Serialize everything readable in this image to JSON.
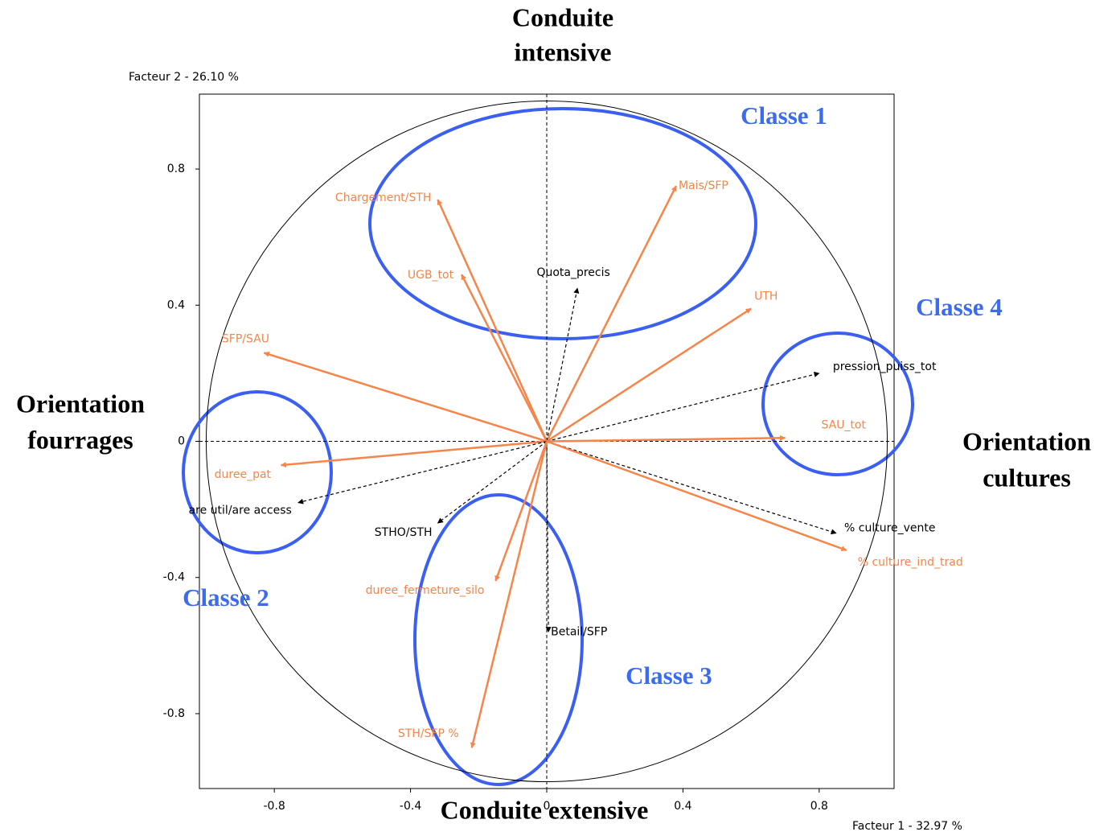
{
  "chart_data": {
    "type": "vector",
    "xlabel": "Facteur 1  -  32.97 %",
    "ylabel": "Facteur 2  -  26.10 %",
    "xlim": [
      -1.02,
      1.02
    ],
    "ylim": [
      -1.02,
      1.02
    ],
    "xticks": [
      -0.8,
      -0.4,
      0,
      0.4,
      0.8
    ],
    "yticks": [
      -0.8,
      -0.4,
      0,
      0.4,
      0.8
    ],
    "unit_circle": true,
    "labels": [
      "Chargement/STH",
      "Mais/SFP",
      "UGB_tot",
      "Quota_precis",
      "UTH",
      "SFP/SAU",
      "pression_puiss_tot",
      "SAU_tot",
      "duree_pat",
      "are util/are access",
      "STHO/STH",
      "% culture_vente",
      "% culture_ind_trad",
      "duree_fermeture_silo",
      "Betail/SFP",
      "STH/SFP %"
    ],
    "x": [
      -0.32,
      0.38,
      -0.25,
      0.09,
      0.6,
      -0.83,
      0.8,
      0.7,
      -0.78,
      -0.73,
      -0.32,
      0.85,
      0.88,
      -0.15,
      0.005,
      -0.22
    ],
    "y": [
      0.71,
      0.75,
      0.49,
      0.45,
      0.39,
      0.26,
      0.2,
      0.01,
      -0.07,
      -0.18,
      -0.24,
      -0.27,
      -0.32,
      -0.41,
      -0.56,
      -0.9
    ],
    "colors": [
      "#f5854a",
      "#f5854a",
      "#f5854a",
      "#000000",
      "#f5854a",
      "#f5854a",
      "#000000",
      "#f5854a",
      "#f5854a",
      "#000000",
      "#000000",
      "#000000",
      "#f5854a",
      "#f5854a",
      "#000000",
      "#f5854a"
    ],
    "line_styles": [
      "solid",
      "solid",
      "solid",
      "dashed",
      "solid",
      "solid",
      "dashed",
      "solid",
      "solid",
      "dashed",
      "dashed",
      "dashed",
      "solid",
      "solid",
      "dashed",
      "solid"
    ],
    "annotations": [
      {
        "lines": [
          "Conduite",
          "intensive"
        ]
      },
      {
        "lines": [
          "Conduite extensive"
        ]
      },
      {
        "lines": [
          "Orientation",
          "fourrages"
        ]
      },
      {
        "lines": [
          "Orientation",
          "cultures"
        ]
      },
      {
        "lines": [
          "Classe 1"
        ]
      },
      {
        "lines": [
          "Classe 2"
        ]
      },
      {
        "lines": [
          "Classe 3"
        ]
      },
      {
        "lines": [
          "Classe 4"
        ]
      }
    ]
  }
}
